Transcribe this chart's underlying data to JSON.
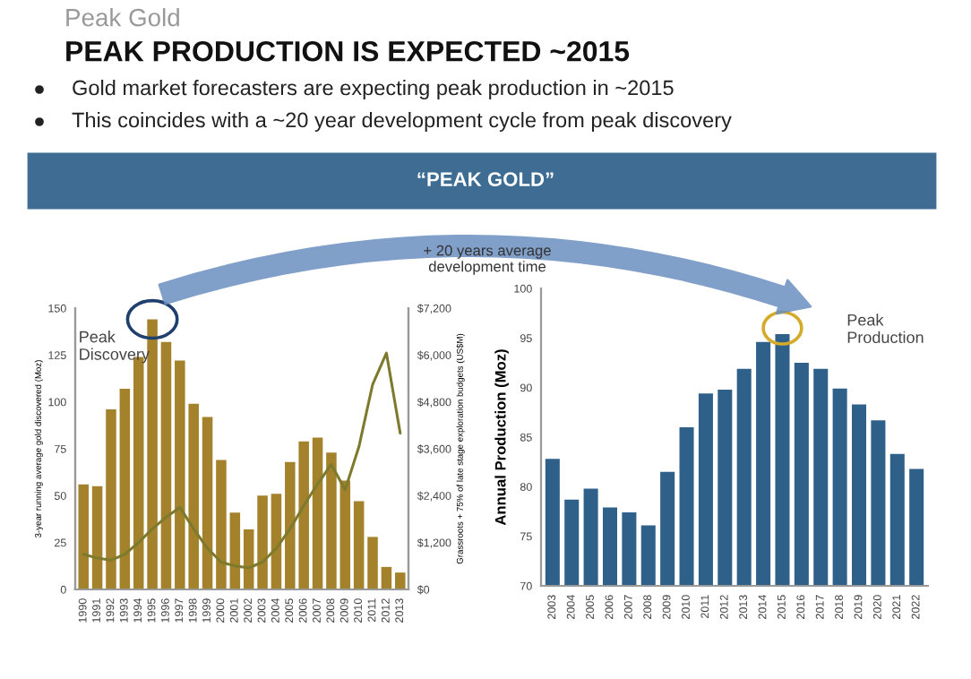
{
  "chart_data": [
    {
      "type": "bar",
      "title": "PEAK PRODUCTION IS EXPECTED ~2015",
      "subtitle": "Peak Gold",
      "annotations": [
        "Gold market forecasters are expecting peak production in ~2015",
        "This coincides with a ~20 year development cycle from peak discovery",
        "“PEAK GOLD”",
        "+ 20 years average\ndevelopment time",
        "Peak\nDiscovery"
      ],
      "categories": [
        "1990",
        "1991",
        "1992",
        "1993",
        "1994",
        "1995",
        "1996",
        "1997",
        "1998",
        "1999",
        "2000",
        "2001",
        "2002",
        "2003",
        "2004",
        "2005",
        "2006",
        "2007",
        "2008",
        "2009",
        "2010",
        "2011",
        "2012",
        "2013"
      ],
      "ylabel": "3-year running average gold discovered (Moz)",
      "y2label": "Grassroots + 75% of late stage exploration budgets (US$M)",
      "series": [
        {
          "type": "bar",
          "color": "#a4822c",
          "values": [
            56,
            55,
            96,
            107,
            124,
            144,
            132,
            122,
            99,
            92,
            69,
            41,
            32,
            50,
            51,
            68,
            79,
            81,
            73,
            58,
            47,
            28,
            12,
            9
          ]
        },
        {
          "type": "line",
          "axis": "y2",
          "color": "#7d7a2e",
          "values": [
            900,
            800,
            750,
            900,
            1200,
            1550,
            1850,
            2100,
            1550,
            1050,
            700,
            600,
            550,
            700,
            1050,
            1550,
            2150,
            2700,
            3200,
            2550,
            3650,
            5250,
            6050,
            4000
          ]
        }
      ],
      "ylim": [
        0,
        150
      ],
      "yticks": [
        0,
        25,
        50,
        75,
        100,
        125,
        150
      ],
      "y2lim": [
        0,
        7200
      ],
      "y2ticks": [
        {
          "value": 0,
          "label": "$0"
        },
        {
          "value": 1200,
          "label": "$1,200"
        },
        {
          "value": 2400,
          "label": "$2,400"
        },
        {
          "value": 3600,
          "label": "$3,600"
        },
        {
          "value": 4800,
          "label": "$4,800"
        },
        {
          "value": 6000,
          "label": "$6,000"
        },
        {
          "value": 7200,
          "label": "$7,200"
        }
      ],
      "grid": false,
      "legend": false
    },
    {
      "type": "bar",
      "ylabel": "Annual Production (Moz)",
      "categories": [
        "2003",
        "2004",
        "2005",
        "2006",
        "2007",
        "2008",
        "2009",
        "2010",
        "2011",
        "2012",
        "2013",
        "2014",
        "2015",
        "2016",
        "2017",
        "2018",
        "2019",
        "2020",
        "2021",
        "2022"
      ],
      "series": [
        {
          "color": "#2f6089",
          "values": [
            82.8,
            78.7,
            79.8,
            77.9,
            77.4,
            76.1,
            81.5,
            86.0,
            89.4,
            89.8,
            91.9,
            94.6,
            95.4,
            92.5,
            91.9,
            89.9,
            88.3,
            86.7,
            83.3,
            81.8
          ]
        }
      ],
      "annotations": [
        "Peak\nProduction"
      ],
      "ylim": [
        70,
        100
      ],
      "yticks": [
        70,
        75,
        80,
        85,
        90,
        95,
        100
      ],
      "grid": false,
      "legend": false
    }
  ]
}
